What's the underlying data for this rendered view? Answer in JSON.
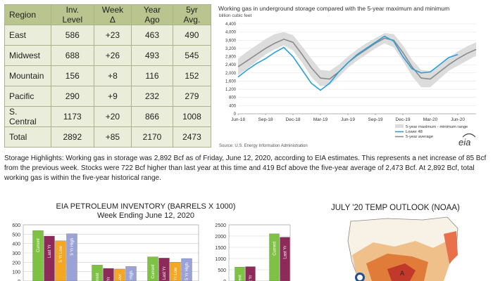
{
  "storage_table": {
    "headers": [
      "Region",
      "Inv. Level",
      "Week Δ",
      "Year Ago",
      "5yr Avg."
    ],
    "rows": [
      [
        "East",
        "586",
        "+23",
        "463",
        "490"
      ],
      [
        "Midwest",
        "688",
        "+26",
        "493",
        "545"
      ],
      [
        "Mountain",
        "156",
        "+8",
        "116",
        "152"
      ],
      [
        "Pacific",
        "290",
        "+9",
        "232",
        "279"
      ],
      [
        "S. Central",
        "1173",
        "+20",
        "866",
        "1008"
      ],
      [
        "Total",
        "2892",
        "+85",
        "2170",
        "2473"
      ]
    ]
  },
  "storage_chart": {
    "title": "Working gas in underground storage compared with the 5-year maximum and minimum",
    "units": "billion cubic feet",
    "source": "Source:  U.S. Energy Information Administration",
    "logo": "eia",
    "colors": {
      "range": "#dcdcdc",
      "lower48": "#2a9fd8",
      "avg": "#8a8a8a"
    }
  },
  "highlights": "Storage Highlights:  Working gas in storage was 2,892 Bcf as of Friday, June 12, 2020, according to EIA estimates. This represents a net increase of 85 Bcf from the previous week. Stocks were 722 Bcf higher than last year at this time and 419 Bcf above the five-year average of 2,473 Bcf. At 2,892 Bcf, total working gas is within the five-year historical range.",
  "petroleum": {
    "title_line1": "EIA PETROLEUM INVENTORY (BARRELS X 1000)",
    "title_line2": "Week Ending June 12, 2020",
    "bar_colors": [
      "#7dc242",
      "#8e2a5a",
      "#f5a623",
      "#9aa2d8"
    ]
  },
  "temp_outlook": {
    "title": "JULY '20 TEMP OUTLOOK (NOAA)",
    "marker": "A"
  },
  "chart_data": [
    {
      "type": "line",
      "title": "Working gas in underground storage compared with the 5-year maximum and minimum",
      "ylabel": "billion cubic feet",
      "ylim": [
        0,
        4400
      ],
      "yticks": [
        "0",
        "400",
        "800",
        "1,200",
        "1,600",
        "2,000",
        "2,400",
        "2,800",
        "3,200",
        "3,600",
        "4,000",
        "4,400"
      ],
      "xticks": [
        "Jun-18",
        "Sep-18",
        "Dec-18",
        "Mar-19",
        "Jun-19",
        "Sep-19",
        "Dec-19",
        "Mar-20",
        "Jun-20"
      ],
      "xtick_positions": [
        0,
        3,
        6,
        9,
        12,
        15,
        18,
        21,
        24
      ],
      "x_range": [
        0,
        26
      ],
      "grid": true,
      "legend": [
        "5-year maximum - minimum range",
        "Lower 48",
        "5-year average"
      ],
      "legend_placement": "bottom-right",
      "series": [
        {
          "name": "5-year maximum - minimum range",
          "x": [
            0,
            1,
            2,
            3,
            4,
            5,
            6,
            7,
            8,
            9,
            10,
            11,
            12,
            13,
            14,
            15,
            16,
            17,
            18,
            19,
            20,
            21,
            22,
            23,
            24,
            25,
            26
          ],
          "low": [
            1900,
            2200,
            2550,
            2900,
            3150,
            3350,
            3100,
            2500,
            1800,
            1350,
            1400,
            1800,
            2250,
            2600,
            2900,
            3200,
            3450,
            3250,
            2600,
            1850,
            1300,
            1300,
            1700,
            2100,
            2350,
            2600,
            2850
          ],
          "high": [
            2700,
            3050,
            3350,
            3650,
            3900,
            4000,
            3850,
            3300,
            2700,
            2150,
            2100,
            2400,
            2800,
            3150,
            3450,
            3700,
            3950,
            3900,
            3350,
            2650,
            2150,
            2100,
            2400,
            2750,
            3050,
            3300,
            3500
          ]
        },
        {
          "name": "5-year average",
          "x": [
            0,
            1,
            2,
            3,
            4,
            5,
            6,
            7,
            8,
            9,
            10,
            11,
            12,
            13,
            14,
            15,
            16,
            17,
            18,
            19,
            20,
            21,
            22,
            23,
            24,
            25,
            26
          ],
          "values": [
            2300,
            2600,
            2900,
            3200,
            3450,
            3650,
            3500,
            2900,
            2250,
            1750,
            1700,
            2050,
            2500,
            2850,
            3150,
            3450,
            3700,
            3600,
            3000,
            2300,
            1750,
            1700,
            2050,
            2400,
            2700,
            2950,
            3150
          ]
        },
        {
          "name": "Lower 48",
          "x": [
            0,
            1,
            2,
            3,
            4,
            5,
            6,
            7,
            8,
            9,
            10,
            11,
            12,
            13,
            14,
            15,
            16,
            17,
            18,
            19,
            20,
            21,
            22,
            23,
            24
          ],
          "values": [
            1800,
            2150,
            2450,
            2700,
            3000,
            3250,
            2800,
            2150,
            1500,
            1150,
            1500,
            2050,
            2500,
            2900,
            3200,
            3500,
            3800,
            3550,
            2800,
            2200,
            2000,
            2050,
            2400,
            2750,
            2900
          ]
        }
      ]
    },
    {
      "type": "bar",
      "title": "EIA PETROLEUM INVENTORY (BARRELS X 1000)",
      "subtitle": "Week Ending June 12, 2020",
      "ylim": [
        0,
        600
      ],
      "yticks": [
        "0",
        "100",
        "200",
        "300",
        "400",
        "500",
        "600"
      ],
      "categories": [
        "",
        "",
        ""
      ],
      "series": [
        {
          "name": "Current",
          "values": [
            538,
            170,
            258
          ]
        },
        {
          "name": "Last Yr",
          "values": [
            480,
            135,
            245
          ]
        },
        {
          "name": "5 Yr Low",
          "values": [
            430,
            128,
            200
          ]
        },
        {
          "name": "5 Yr High",
          "values": [
            505,
            155,
            240
          ]
        }
      ]
    },
    {
      "type": "bar",
      "ylim": [
        0,
        2500
      ],
      "yticks": [
        "0",
        "500",
        "1000",
        "1500",
        "2000",
        "2500"
      ],
      "categories": [
        "",
        ""
      ],
      "series": [
        {
          "name": "Current",
          "values": [
            620,
            2100
          ]
        },
        {
          "name": "Last Yr",
          "values": [
            640,
            1950
          ]
        }
      ]
    }
  ]
}
